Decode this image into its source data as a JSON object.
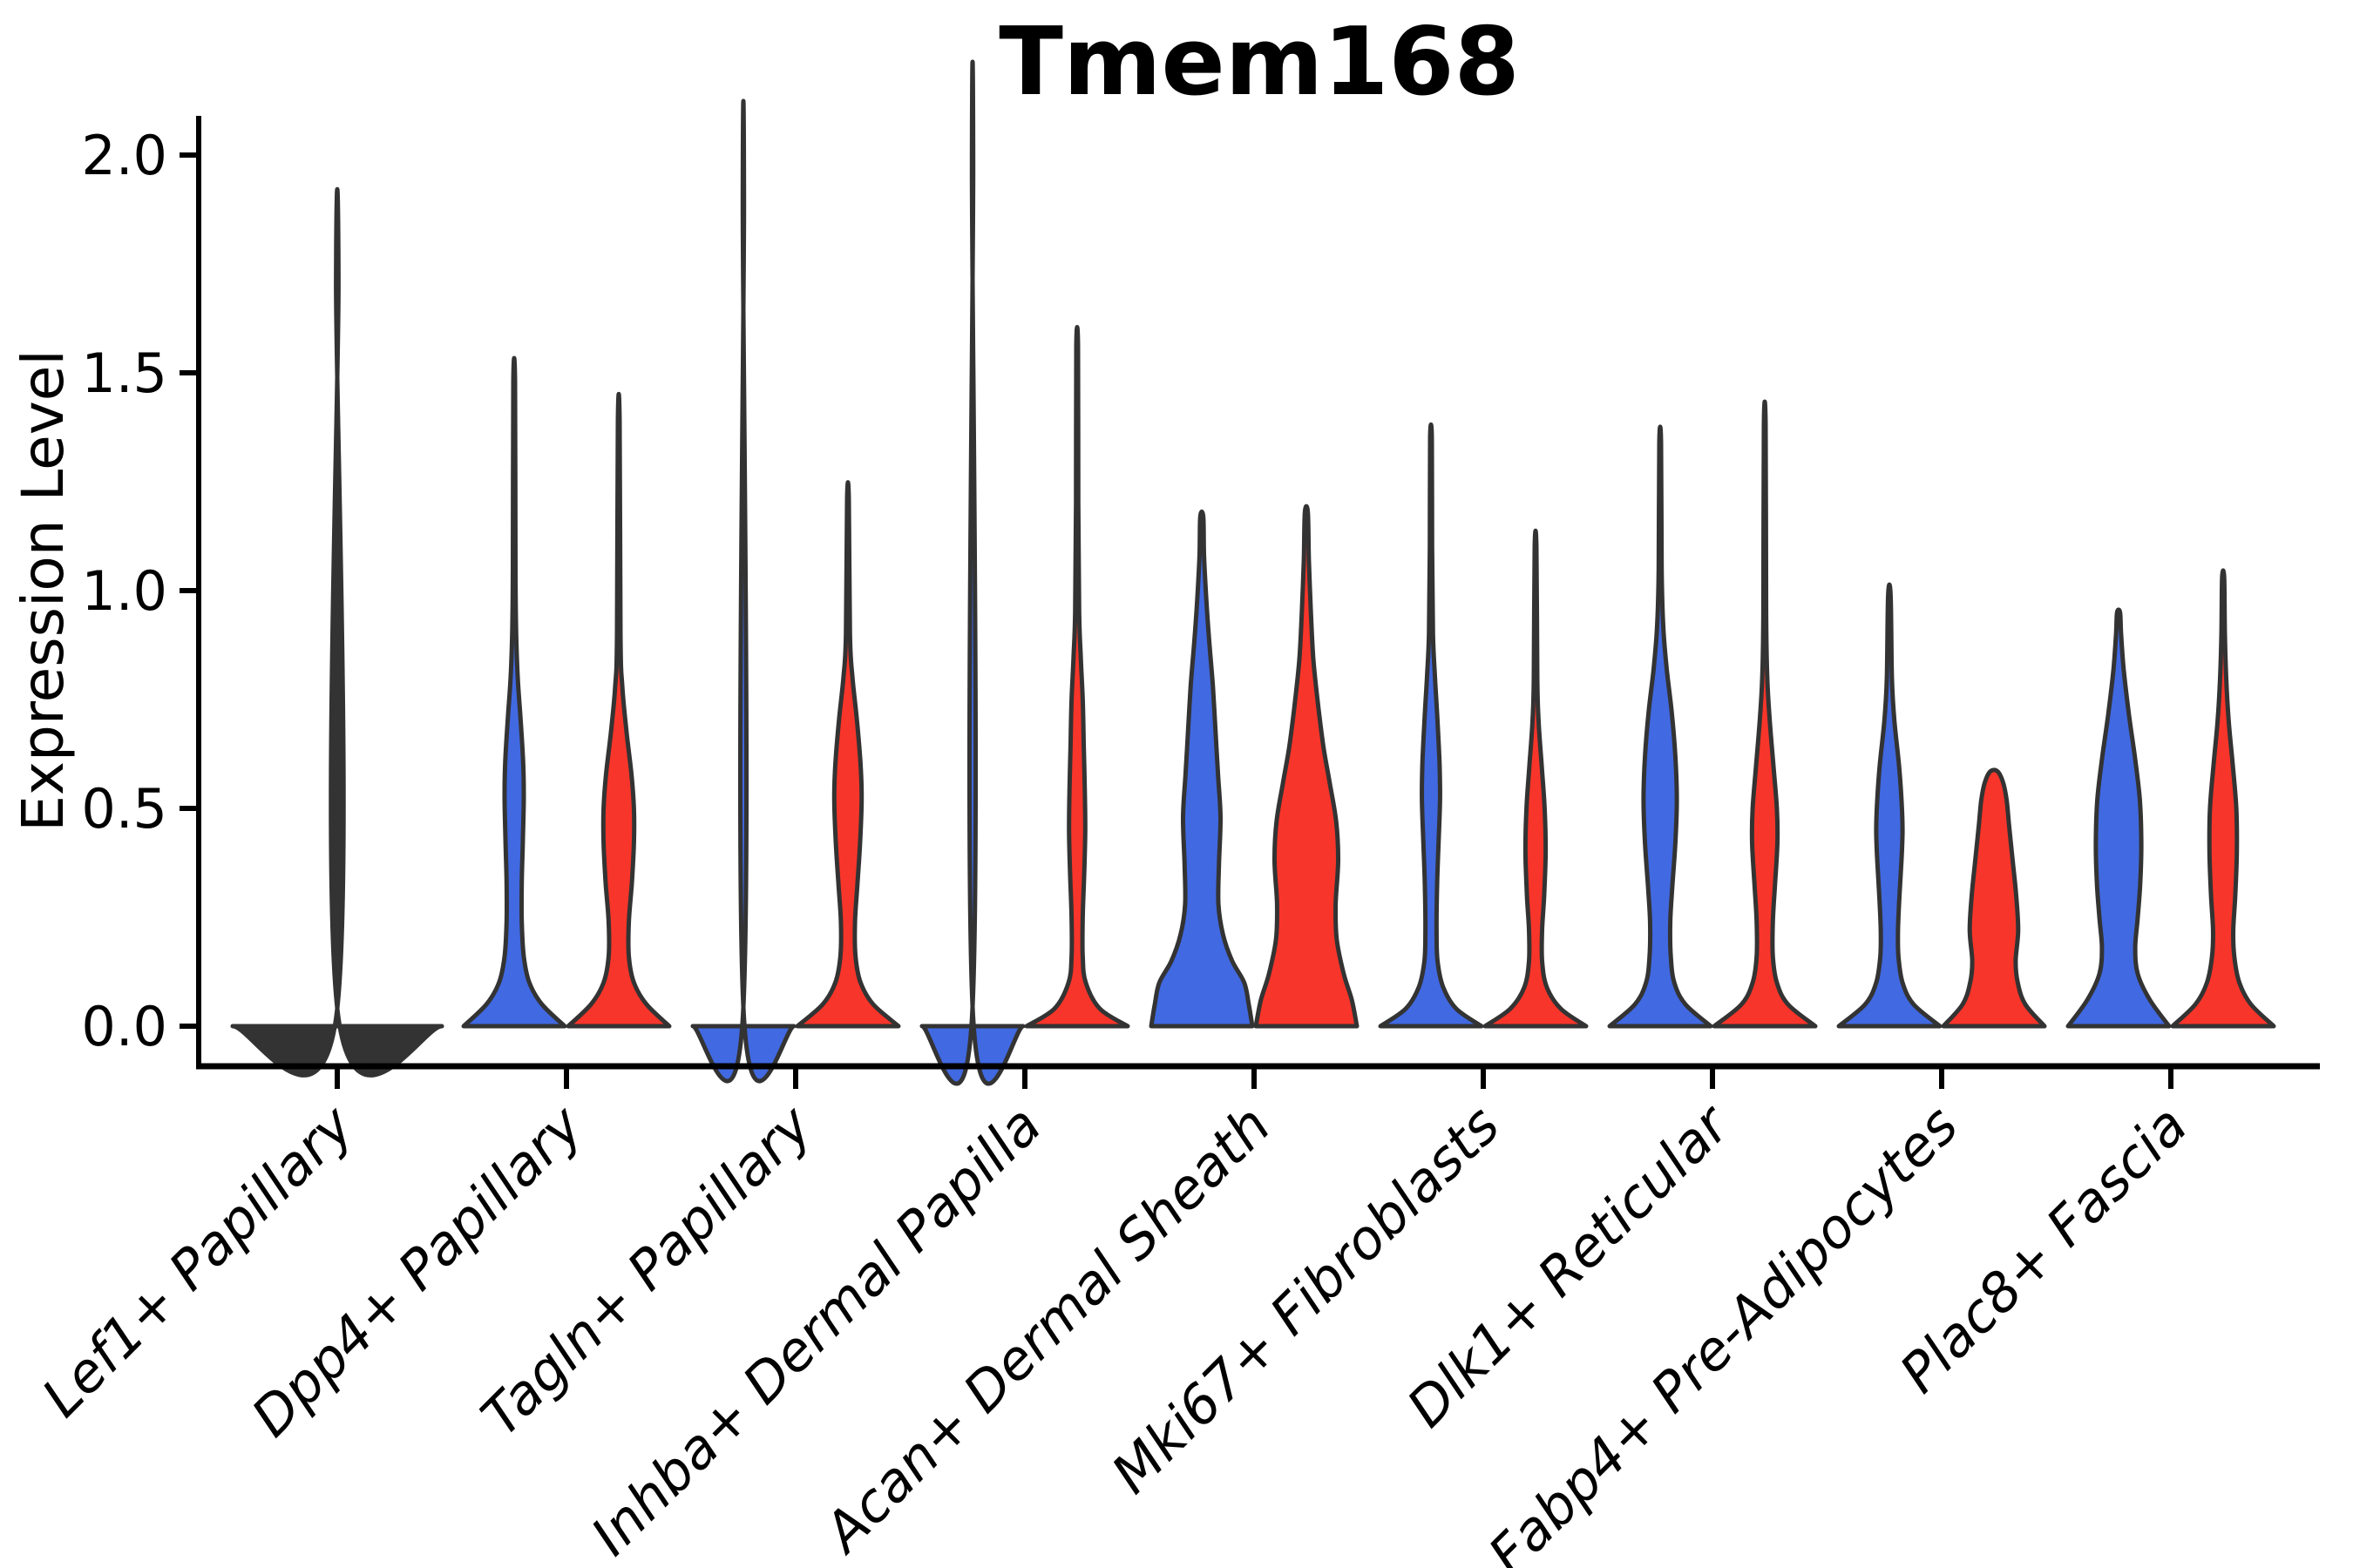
{
  "chart_data": {
    "type": "violin",
    "title": "Tmem168",
    "ylabel": "Expression Level",
    "xlabel": "",
    "ylim": [
      0.0,
      2.0
    ],
    "yticks": [
      0.0,
      0.5,
      1.0,
      1.5,
      2.0
    ],
    "ytick_labels": [
      "0.0",
      "0.5",
      "1.0",
      "1.5",
      "2.0"
    ],
    "grid": false,
    "legend": "none",
    "categories": [
      "Lef1+ Papillary",
      "Dpp4+ Papillary",
      "Tagln+ Papillary",
      "Inhba+ Dermal Papilla",
      "Acan+ Dermal Sheath",
      "Mki67+ Fibroblasts",
      "Dlk1+ Reticular",
      "Fabp4+ Pre-Adipocytes",
      "Plac8+ Fascia"
    ],
    "palette": {
      "blue": "#4169E1",
      "red": "#F8352A",
      "single": "#333333"
    },
    "outline_color": "#333333",
    "axis_color": "#000000",
    "violins": [
      {
        "category_index": 0,
        "category": "Lef1+ Papillary",
        "series": "single",
        "collapsed": true,
        "max": 1.71,
        "profile": [
          [
            0,
            1
          ],
          [
            0.018,
            0.012
          ],
          [
            1.71,
            0.012
          ]
        ]
      },
      {
        "category_index": 1,
        "category": "Dpp4+ Papillary",
        "series": "blue",
        "collapsed": false,
        "max": 1.48,
        "profile": [
          [
            0,
            1
          ],
          [
            0.05,
            0.55
          ],
          [
            0.1,
            0.3
          ],
          [
            0.16,
            0.19
          ],
          [
            0.24,
            0.15
          ],
          [
            0.33,
            0.15
          ],
          [
            0.42,
            0.17
          ],
          [
            0.52,
            0.19
          ],
          [
            0.6,
            0.18
          ],
          [
            0.7,
            0.13
          ],
          [
            0.8,
            0.07
          ],
          [
            0.9,
            0.04
          ],
          [
            1.05,
            0.025
          ],
          [
            1.48,
            0.018
          ]
        ]
      },
      {
        "category_index": 1,
        "category": "Dpp4+ Papillary",
        "series": "red",
        "collapsed": false,
        "max": 1.39,
        "profile": [
          [
            0,
            1
          ],
          [
            0.05,
            0.55
          ],
          [
            0.1,
            0.3
          ],
          [
            0.16,
            0.2
          ],
          [
            0.24,
            0.2
          ],
          [
            0.33,
            0.26
          ],
          [
            0.42,
            0.3
          ],
          [
            0.5,
            0.3
          ],
          [
            0.58,
            0.25
          ],
          [
            0.68,
            0.15
          ],
          [
            0.78,
            0.07
          ],
          [
            0.9,
            0.035
          ],
          [
            1.39,
            0.018
          ]
        ]
      },
      {
        "category_index": 2,
        "category": "Tagln+ Papillary",
        "series": "blue",
        "collapsed": true,
        "max": 1.89,
        "profile": [
          [
            0,
            1
          ],
          [
            0.018,
            0.012
          ],
          [
            1.89,
            0.012
          ]
        ]
      },
      {
        "category_index": 2,
        "category": "Tagln+ Papillary",
        "series": "red",
        "collapsed": false,
        "max": 1.21,
        "profile": [
          [
            0,
            1
          ],
          [
            0.05,
            0.5
          ],
          [
            0.1,
            0.25
          ],
          [
            0.16,
            0.15
          ],
          [
            0.24,
            0.14
          ],
          [
            0.33,
            0.19
          ],
          [
            0.42,
            0.24
          ],
          [
            0.52,
            0.27
          ],
          [
            0.6,
            0.25
          ],
          [
            0.7,
            0.18
          ],
          [
            0.8,
            0.09
          ],
          [
            0.9,
            0.04
          ],
          [
            1.21,
            0.018
          ]
        ]
      },
      {
        "category_index": 3,
        "category": "Inhba+ Dermal Papilla",
        "series": "blue",
        "collapsed": true,
        "max": 1.97,
        "profile": [
          [
            0,
            1
          ],
          [
            0.018,
            0.012
          ],
          [
            1.97,
            0.012
          ]
        ]
      },
      {
        "category_index": 3,
        "category": "Inhba+ Dermal Papilla",
        "series": "red",
        "collapsed": false,
        "max": 1.56,
        "profile": [
          [
            0,
            1
          ],
          [
            0.04,
            0.45
          ],
          [
            0.1,
            0.17
          ],
          [
            0.16,
            0.11
          ],
          [
            0.25,
            0.11
          ],
          [
            0.35,
            0.14
          ],
          [
            0.45,
            0.16
          ],
          [
            0.55,
            0.15
          ],
          [
            0.65,
            0.13
          ],
          [
            0.75,
            0.11
          ],
          [
            0.85,
            0.07
          ],
          [
            0.95,
            0.04
          ],
          [
            1.2,
            0.022
          ],
          [
            1.56,
            0.018
          ]
        ]
      },
      {
        "category_index": 4,
        "category": "Acan+ Dermal Sheath",
        "series": "blue",
        "collapsed": false,
        "max": 1.17,
        "profile": [
          [
            0,
            1
          ],
          [
            0.05,
            0.93
          ],
          [
            0.1,
            0.84
          ],
          [
            0.15,
            0.6
          ],
          [
            0.21,
            0.42
          ],
          [
            0.28,
            0.33
          ],
          [
            0.37,
            0.34
          ],
          [
            0.48,
            0.37
          ],
          [
            0.58,
            0.32
          ],
          [
            0.68,
            0.27
          ],
          [
            0.78,
            0.22
          ],
          [
            0.88,
            0.15
          ],
          [
            0.98,
            0.09
          ],
          [
            1.08,
            0.045
          ],
          [
            1.17,
            0.03
          ]
        ]
      },
      {
        "category_index": 4,
        "category": "Acan+ Dermal Sheath",
        "series": "red",
        "collapsed": false,
        "max": 1.18,
        "profile": [
          [
            0,
            1
          ],
          [
            0.06,
            0.9
          ],
          [
            0.12,
            0.74
          ],
          [
            0.2,
            0.6
          ],
          [
            0.28,
            0.58
          ],
          [
            0.38,
            0.63
          ],
          [
            0.47,
            0.59
          ],
          [
            0.56,
            0.46
          ],
          [
            0.64,
            0.34
          ],
          [
            0.73,
            0.24
          ],
          [
            0.84,
            0.14
          ],
          [
            0.95,
            0.09
          ],
          [
            1.07,
            0.05
          ],
          [
            1.18,
            0.03
          ]
        ]
      },
      {
        "category_index": 5,
        "category": "Mki67+ Fibroblasts",
        "series": "blue",
        "collapsed": false,
        "max": 1.35,
        "profile": [
          [
            0,
            1
          ],
          [
            0.04,
            0.5
          ],
          [
            0.09,
            0.24
          ],
          [
            0.15,
            0.13
          ],
          [
            0.22,
            0.11
          ],
          [
            0.32,
            0.12
          ],
          [
            0.42,
            0.15
          ],
          [
            0.52,
            0.18
          ],
          [
            0.6,
            0.17
          ],
          [
            0.7,
            0.13
          ],
          [
            0.8,
            0.08
          ],
          [
            0.9,
            0.04
          ],
          [
            1.1,
            0.022
          ],
          [
            1.35,
            0.018
          ]
        ]
      },
      {
        "category_index": 5,
        "category": "Mki67+ Fibroblasts",
        "series": "red",
        "collapsed": false,
        "max": 1.1,
        "profile": [
          [
            0,
            1
          ],
          [
            0.04,
            0.5
          ],
          [
            0.09,
            0.22
          ],
          [
            0.15,
            0.13
          ],
          [
            0.22,
            0.13
          ],
          [
            0.3,
            0.17
          ],
          [
            0.4,
            0.2
          ],
          [
            0.5,
            0.18
          ],
          [
            0.6,
            0.12
          ],
          [
            0.7,
            0.06
          ],
          [
            0.8,
            0.035
          ],
          [
            1.1,
            0.018
          ]
        ]
      },
      {
        "category_index": 6,
        "category": "Dlk1+ Reticular",
        "series": "blue",
        "collapsed": false,
        "max": 1.34,
        "profile": [
          [
            0,
            1
          ],
          [
            0.05,
            0.5
          ],
          [
            0.1,
            0.28
          ],
          [
            0.16,
            0.21
          ],
          [
            0.24,
            0.2
          ],
          [
            0.32,
            0.24
          ],
          [
            0.42,
            0.3
          ],
          [
            0.52,
            0.33
          ],
          [
            0.62,
            0.3
          ],
          [
            0.72,
            0.23
          ],
          [
            0.82,
            0.13
          ],
          [
            0.92,
            0.06
          ],
          [
            1.05,
            0.03
          ],
          [
            1.34,
            0.018
          ]
        ]
      },
      {
        "category_index": 6,
        "category": "Dlk1+ Reticular",
        "series": "red",
        "collapsed": false,
        "max": 1.38,
        "profile": [
          [
            0,
            1
          ],
          [
            0.05,
            0.46
          ],
          [
            0.1,
            0.24
          ],
          [
            0.16,
            0.16
          ],
          [
            0.24,
            0.16
          ],
          [
            0.32,
            0.2
          ],
          [
            0.42,
            0.25
          ],
          [
            0.5,
            0.24
          ],
          [
            0.6,
            0.17
          ],
          [
            0.7,
            0.1
          ],
          [
            0.8,
            0.05
          ],
          [
            0.95,
            0.028
          ],
          [
            1.38,
            0.018
          ]
        ]
      },
      {
        "category_index": 7,
        "category": "Fabp4+ Pre-Adipocytes",
        "series": "blue",
        "collapsed": false,
        "max": 0.99,
        "profile": [
          [
            0,
            1
          ],
          [
            0.05,
            0.48
          ],
          [
            0.1,
            0.26
          ],
          [
            0.16,
            0.18
          ],
          [
            0.22,
            0.17
          ],
          [
            0.3,
            0.2
          ],
          [
            0.38,
            0.24
          ],
          [
            0.45,
            0.26
          ],
          [
            0.52,
            0.24
          ],
          [
            0.6,
            0.19
          ],
          [
            0.7,
            0.1
          ],
          [
            0.8,
            0.05
          ],
          [
            0.99,
            0.025
          ]
        ]
      },
      {
        "category_index": 7,
        "category": "Fabp4+ Pre-Adipocytes",
        "series": "red",
        "collapsed": false,
        "max": 0.58,
        "profile": [
          [
            0,
            1
          ],
          [
            0.05,
            0.62
          ],
          [
            0.1,
            0.47
          ],
          [
            0.15,
            0.43
          ],
          [
            0.22,
            0.48
          ],
          [
            0.3,
            0.44
          ],
          [
            0.38,
            0.37
          ],
          [
            0.46,
            0.3
          ],
          [
            0.52,
            0.25
          ],
          [
            0.56,
            0.18
          ],
          [
            0.585,
            0.07
          ]
        ]
      },
      {
        "category_index": 8,
        "category": "Plac8+ Fascia",
        "series": "blue",
        "collapsed": false,
        "max": 0.95,
        "profile": [
          [
            0,
            1
          ],
          [
            0.06,
            0.62
          ],
          [
            0.12,
            0.38
          ],
          [
            0.18,
            0.33
          ],
          [
            0.25,
            0.38
          ],
          [
            0.33,
            0.43
          ],
          [
            0.42,
            0.45
          ],
          [
            0.52,
            0.42
          ],
          [
            0.62,
            0.32
          ],
          [
            0.72,
            0.2
          ],
          [
            0.82,
            0.1
          ],
          [
            0.9,
            0.05
          ],
          [
            0.95,
            0.03
          ]
        ]
      },
      {
        "category_index": 8,
        "category": "Plac8+ Fascia",
        "series": "red",
        "collapsed": false,
        "max": 1.03,
        "profile": [
          [
            0,
            1
          ],
          [
            0.05,
            0.55
          ],
          [
            0.1,
            0.32
          ],
          [
            0.16,
            0.22
          ],
          [
            0.22,
            0.2
          ],
          [
            0.3,
            0.24
          ],
          [
            0.4,
            0.27
          ],
          [
            0.5,
            0.26
          ],
          [
            0.6,
            0.19
          ],
          [
            0.7,
            0.11
          ],
          [
            0.8,
            0.06
          ],
          [
            0.9,
            0.035
          ],
          [
            1.03,
            0.02
          ]
        ]
      }
    ]
  }
}
